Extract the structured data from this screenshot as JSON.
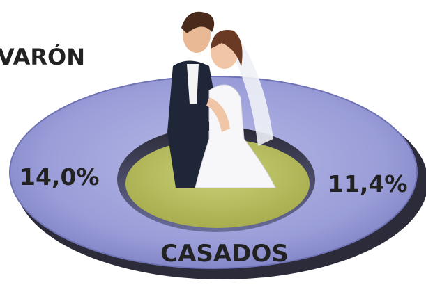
{
  "labels": {
    "title": "VARÓN",
    "left_value": "14,0%",
    "right_value": "11,4%",
    "caption": "CASADOS"
  }
}
